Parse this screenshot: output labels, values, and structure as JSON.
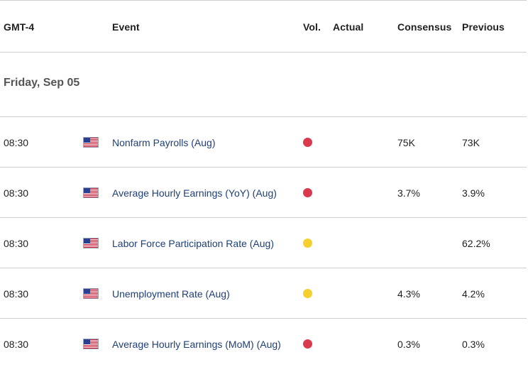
{
  "header": {
    "timezone": "GMT-4",
    "event": "Event",
    "volatility": "Vol.",
    "actual": "Actual",
    "consensus": "Consensus",
    "previous": "Previous"
  },
  "date_label": "Friday, Sep 05",
  "colors": {
    "high_volatility": "#d93a4e",
    "medium_volatility": "#f5cf2e",
    "event_text": "#1d3f7a",
    "divider": "#cfcfcf"
  },
  "events": [
    {
      "time": "08:30",
      "flag": "us-flag-icon",
      "name": "Nonfarm Payrolls (Aug)",
      "volatility": "high",
      "actual": "",
      "consensus": "75K",
      "previous": "73K"
    },
    {
      "time": "08:30",
      "flag": "us-flag-icon",
      "name": "Average Hourly Earnings (YoY) (Aug)",
      "volatility": "high",
      "actual": "",
      "consensus": "3.7%",
      "previous": "3.9%"
    },
    {
      "time": "08:30",
      "flag": "us-flag-icon",
      "name": "Labor Force Participation Rate (Aug)",
      "volatility": "medium",
      "actual": "",
      "consensus": "",
      "previous": "62.2%"
    },
    {
      "time": "08:30",
      "flag": "us-flag-icon",
      "name": "Unemployment Rate (Aug)",
      "volatility": "medium",
      "actual": "",
      "consensus": "4.3%",
      "previous": "4.2%"
    },
    {
      "time": "08:30",
      "flag": "us-flag-icon",
      "name": "Average Hourly Earnings (MoM) (Aug)",
      "volatility": "high",
      "actual": "",
      "consensus": "0.3%",
      "previous": "0.3%"
    }
  ]
}
